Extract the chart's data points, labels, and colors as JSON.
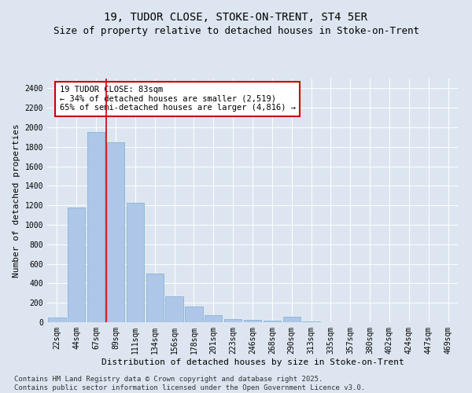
{
  "title1": "19, TUDOR CLOSE, STOKE-ON-TRENT, ST4 5ER",
  "title2": "Size of property relative to detached houses in Stoke-on-Trent",
  "xlabel": "Distribution of detached houses by size in Stoke-on-Trent",
  "ylabel": "Number of detached properties",
  "categories": [
    "22sqm",
    "44sqm",
    "67sqm",
    "89sqm",
    "111sqm",
    "134sqm",
    "156sqm",
    "178sqm",
    "201sqm",
    "223sqm",
    "246sqm",
    "268sqm",
    "290sqm",
    "313sqm",
    "335sqm",
    "357sqm",
    "380sqm",
    "402sqm",
    "424sqm",
    "447sqm",
    "469sqm"
  ],
  "values": [
    50,
    1175,
    1950,
    1850,
    1225,
    500,
    270,
    160,
    75,
    30,
    25,
    20,
    55,
    5,
    2,
    2,
    2,
    1,
    1,
    1,
    1
  ],
  "bar_color": "#aec6e8",
  "bar_edge_color": "#7aadd4",
  "vline_color": "#cc0000",
  "annotation_text": "19 TUDOR CLOSE: 83sqm\n← 34% of detached houses are smaller (2,519)\n65% of semi-detached houses are larger (4,816) →",
  "annotation_box_color": "#ffffff",
  "annotation_box_edge_color": "#cc0000",
  "ylim": [
    0,
    2500
  ],
  "yticks": [
    0,
    200,
    400,
    600,
    800,
    1000,
    1200,
    1400,
    1600,
    1800,
    2000,
    2200,
    2400
  ],
  "background_color": "#dde6f0",
  "footer_text": "Contains HM Land Registry data © Crown copyright and database right 2025.\nContains public sector information licensed under the Open Government Licence v3.0.",
  "title1_fontsize": 10,
  "title2_fontsize": 9,
  "xlabel_fontsize": 8,
  "ylabel_fontsize": 8,
  "tick_fontsize": 7,
  "annotation_fontsize": 7.5,
  "footer_fontsize": 6.5
}
